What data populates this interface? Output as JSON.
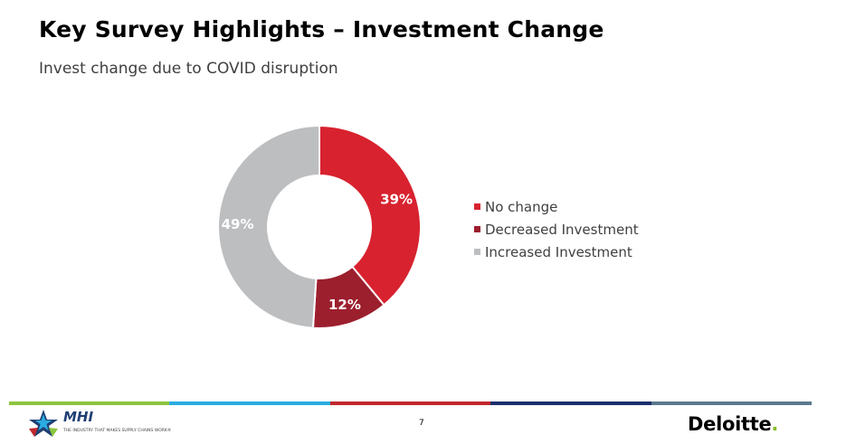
{
  "header": {
    "title": "Key Survey Highlights – Investment Change",
    "subtitle": "Invest change due to COVID disruption"
  },
  "chart_data": {
    "type": "pie",
    "variant": "donut",
    "categories": [
      "No change",
      "Decreased Investment",
      "Increased Investment"
    ],
    "values": [
      39,
      12,
      49
    ],
    "data_labels": [
      "39%",
      "12%",
      "49%"
    ],
    "colors": [
      "#d8222f",
      "#9c1f2e",
      "#bdbec0"
    ],
    "legend_position": "right"
  },
  "footer": {
    "page_number": "7",
    "left_logo": {
      "name": "MHI",
      "tagline": "THE INDUSTRY THAT MAKES SUPPLY CHAINS WORK®",
      "icon": "star-logo-icon"
    },
    "right_logo": {
      "name": "Deloitte",
      "dot": "."
    },
    "rule_colors": [
      "#8cc63f",
      "#29abe2",
      "#c1272d",
      "#1c2e6e",
      "#5b7a8c"
    ]
  }
}
